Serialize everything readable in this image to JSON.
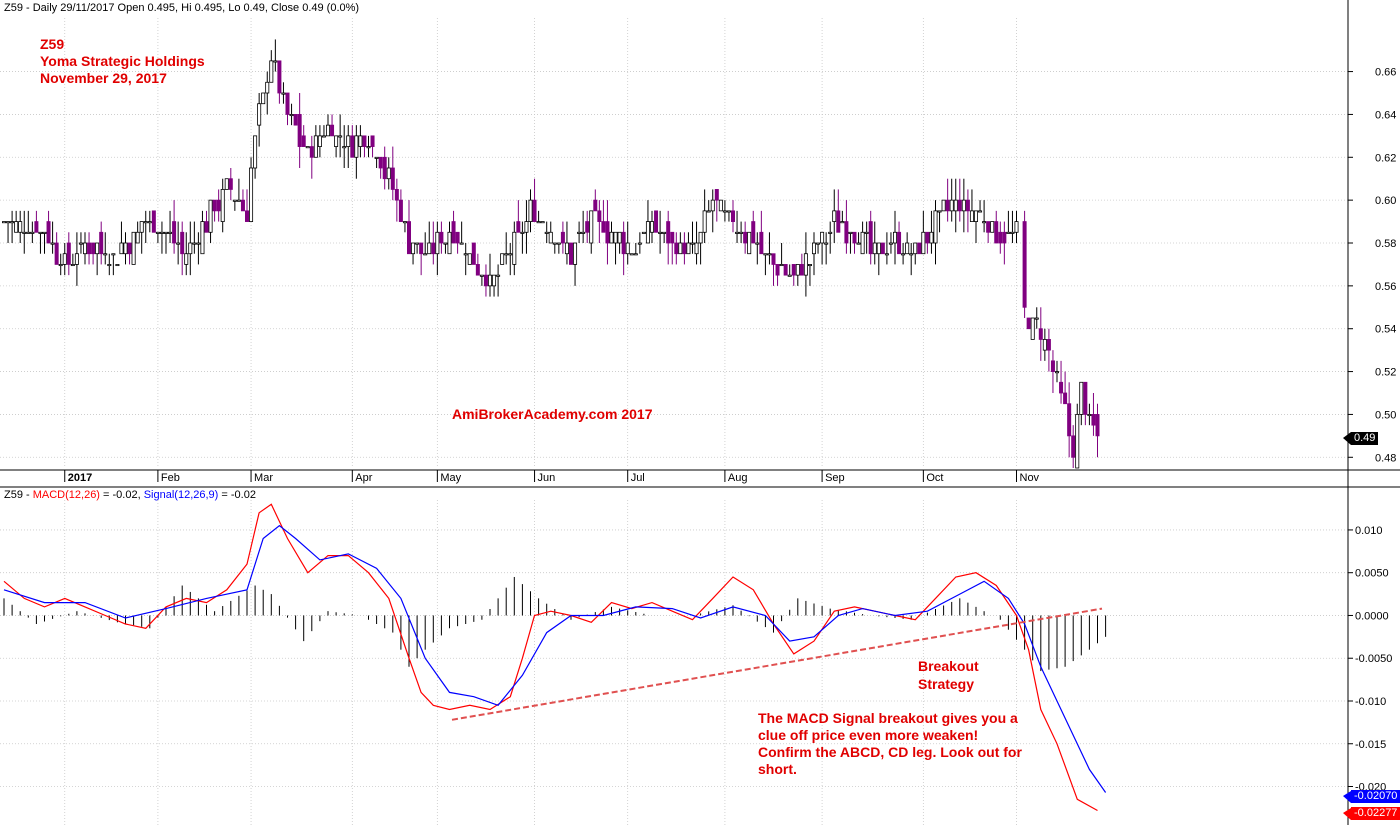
{
  "header": {
    "price_title": "Z59 - Daily 29/11/2017 Open 0.495, Hi 0.495, Lo 0.49, Close 0.49 (0.0%)",
    "macd_prefix": "Z59 - ",
    "macd_name": "MACD(12,26)",
    "macd_value": " = -0.02, ",
    "signal_name": "Signal(12,26,9)",
    "signal_value": " = -0.02"
  },
  "annotations": {
    "symbol": "Z59",
    "company": "Yoma Strategic Holdings",
    "date": "November 29, 2017",
    "watermark": "AmiBrokerAcademy.com  2017",
    "strategy_line1": "Breakout",
    "strategy_line2": "Strategy",
    "note": "The MACD Signal breakout gives you a clue off price even more weaken! Confirm the ABCD, CD leg. Look out for short."
  },
  "tags": {
    "last_price": "0.49",
    "signal_last": "-0.02070",
    "macd_last": "-0.02277"
  },
  "colors": {
    "up_candle": "#000000",
    "down_candle": "#800080",
    "macd_line": "#ff0000",
    "signal_line": "#0000ff",
    "histogram": "#000000",
    "trendline": "#e05050",
    "annotation_text": "#e00000"
  },
  "chart_data": [
    {
      "type": "candlestick",
      "title": "Z59 - Daily 29/11/2017",
      "x_ticks": [
        "2017",
        "Feb",
        "Mar",
        "Apr",
        "May",
        "Jun",
        "Jul",
        "Aug",
        "Sep",
        "Oct",
        "Nov"
      ],
      "y_ticks": [
        "0.66",
        "0.64",
        "0.62",
        "0.60",
        "0.58",
        "0.56",
        "0.54",
        "0.52",
        "0.50",
        "0.48"
      ],
      "ylim": [
        0.475,
        0.685
      ],
      "grid": true,
      "close_path": [
        [
          0,
          0.59
        ],
        [
          10,
          0.585
        ],
        [
          15,
          0.57
        ],
        [
          20,
          0.58
        ],
        [
          28,
          0.575
        ],
        [
          35,
          0.59
        ],
        [
          40,
          0.585
        ],
        [
          45,
          0.575
        ],
        [
          50,
          0.59
        ],
        [
          55,
          0.605
        ],
        [
          60,
          0.595
        ],
        [
          62,
          0.63
        ],
        [
          66,
          0.665
        ],
        [
          70,
          0.64
        ],
        [
          75,
          0.62
        ],
        [
          80,
          0.635
        ],
        [
          85,
          0.625
        ],
        [
          90,
          0.63
        ],
        [
          95,
          0.61
        ],
        [
          100,
          0.58
        ],
        [
          105,
          0.575
        ],
        [
          110,
          0.585
        ],
        [
          115,
          0.575
        ],
        [
          120,
          0.56
        ],
        [
          125,
          0.575
        ],
        [
          130,
          0.595
        ],
        [
          135,
          0.585
        ],
        [
          140,
          0.575
        ],
        [
          145,
          0.59
        ],
        [
          150,
          0.585
        ],
        [
          155,
          0.575
        ],
        [
          160,
          0.59
        ],
        [
          165,
          0.58
        ],
        [
          170,
          0.575
        ],
        [
          175,
          0.6
        ],
        [
          180,
          0.59
        ],
        [
          185,
          0.58
        ],
        [
          190,
          0.57
        ],
        [
          195,
          0.565
        ],
        [
          200,
          0.575
        ],
        [
          205,
          0.59
        ],
        [
          210,
          0.585
        ],
        [
          215,
          0.575
        ],
        [
          220,
          0.58
        ],
        [
          225,
          0.575
        ],
        [
          230,
          0.59
        ],
        [
          235,
          0.6
        ],
        [
          240,
          0.595
        ],
        [
          245,
          0.585
        ],
        [
          250,
          0.585
        ],
        [
          252,
          0.55
        ],
        [
          255,
          0.54
        ],
        [
          258,
          0.53
        ],
        [
          262,
          0.5
        ],
        [
          264,
          0.485
        ],
        [
          266,
          0.51
        ],
        [
          268,
          0.495
        ],
        [
          270,
          0.49
        ]
      ]
    },
    {
      "type": "line",
      "title": "Z59 - MACD(12,26) = -0.02, Signal(12,26,9) = -0.02",
      "y_ticks": [
        "0.010",
        "0.0050",
        "0.0000",
        "-0.0050",
        "-0.010",
        "-0.015",
        "-0.020"
      ],
      "ylim": [
        -0.0245,
        0.0135
      ],
      "grid": true,
      "series": [
        {
          "name": "MACD(12,26)",
          "points": [
            [
              0,
              0.004
            ],
            [
              5,
              0.002
            ],
            [
              10,
              0.001
            ],
            [
              15,
              0.002
            ],
            [
              20,
              0.001
            ],
            [
              25,
              0.0
            ],
            [
              30,
              -0.001
            ],
            [
              35,
              -0.0015
            ],
            [
              40,
              0.001
            ],
            [
              45,
              0.002
            ],
            [
              50,
              0.0015
            ],
            [
              55,
              0.003
            ],
            [
              60,
              0.006
            ],
            [
              63,
              0.012
            ],
            [
              66,
              0.013
            ],
            [
              70,
              0.009
            ],
            [
              75,
              0.005
            ],
            [
              80,
              0.007
            ],
            [
              85,
              0.007
            ],
            [
              90,
              0.005
            ],
            [
              95,
              0.002
            ],
            [
              100,
              -0.005
            ],
            [
              103,
              -0.009
            ],
            [
              106,
              -0.0105
            ],
            [
              110,
              -0.011
            ],
            [
              115,
              -0.0105
            ],
            [
              120,
              -0.011
            ],
            [
              125,
              -0.0095
            ],
            [
              128,
              -0.005
            ],
            [
              131,
              0.0
            ],
            [
              135,
              0.0005
            ],
            [
              140,
              0.0
            ],
            [
              145,
              -0.0008
            ],
            [
              150,
              0.0015
            ],
            [
              155,
              0.0008
            ],
            [
              160,
              0.0015
            ],
            [
              165,
              0.0005
            ],
            [
              170,
              -0.0005
            ],
            [
              175,
              0.002
            ],
            [
              180,
              0.0045
            ],
            [
              185,
              0.003
            ],
            [
              190,
              -0.001
            ],
            [
              195,
              -0.0045
            ],
            [
              200,
              -0.003
            ],
            [
              205,
              0.0005
            ],
            [
              210,
              0.001
            ],
            [
              215,
              0.0005
            ],
            [
              220,
              0.0
            ],
            [
              225,
              -0.0005
            ],
            [
              230,
              0.002
            ],
            [
              235,
              0.0045
            ],
            [
              240,
              0.005
            ],
            [
              245,
              0.0035
            ],
            [
              250,
              0.0
            ],
            [
              253,
              -0.004
            ],
            [
              256,
              -0.011
            ],
            [
              260,
              -0.015
            ],
            [
              265,
              -0.0215
            ],
            [
              270,
              -0.0228
            ]
          ]
        },
        {
          "name": "Signal(12,26,9)",
          "points": [
            [
              0,
              0.003
            ],
            [
              10,
              0.0015
            ],
            [
              20,
              0.0015
            ],
            [
              30,
              -0.0003
            ],
            [
              40,
              0.0008
            ],
            [
              50,
              0.002
            ],
            [
              60,
              0.003
            ],
            [
              64,
              0.009
            ],
            [
              68,
              0.0105
            ],
            [
              72,
              0.009
            ],
            [
              78,
              0.0065
            ],
            [
              85,
              0.0072
            ],
            [
              92,
              0.0055
            ],
            [
              98,
              0.002
            ],
            [
              104,
              -0.005
            ],
            [
              110,
              -0.009
            ],
            [
              116,
              -0.0095
            ],
            [
              122,
              -0.0105
            ],
            [
              128,
              -0.007
            ],
            [
              134,
              -0.002
            ],
            [
              140,
              0.0
            ],
            [
              148,
              0.0
            ],
            [
              156,
              0.001
            ],
            [
              165,
              0.0008
            ],
            [
              172,
              -0.0003
            ],
            [
              180,
              0.001
            ],
            [
              188,
              0.0
            ],
            [
              194,
              -0.003
            ],
            [
              200,
              -0.0025
            ],
            [
              206,
              0.0
            ],
            [
              212,
              0.0008
            ],
            [
              220,
              0.0
            ],
            [
              228,
              0.0005
            ],
            [
              236,
              0.0025
            ],
            [
              242,
              0.004
            ],
            [
              248,
              0.002
            ],
            [
              252,
              -0.001
            ],
            [
              256,
              -0.006
            ],
            [
              262,
              -0.012
            ],
            [
              268,
              -0.018
            ],
            [
              272,
              -0.0207
            ]
          ]
        },
        {
          "name": "Histogram",
          "spikes": [
            [
              0,
              0.002
            ],
            [
              8,
              -0.001
            ],
            [
              18,
              0.0005
            ],
            [
              28,
              -0.0008
            ],
            [
              36,
              -0.0015
            ],
            [
              44,
              0.0035
            ],
            [
              52,
              0.0005
            ],
            [
              62,
              0.0035
            ],
            [
              66,
              0.0025
            ],
            [
              74,
              -0.003
            ],
            [
              80,
              0.0005
            ],
            [
              88,
              0.0
            ],
            [
              96,
              -0.002
            ],
            [
              100,
              -0.006
            ],
            [
              104,
              -0.004
            ],
            [
              110,
              -0.0015
            ],
            [
              118,
              -0.0005
            ],
            [
              126,
              0.0045
            ],
            [
              132,
              0.002
            ],
            [
              140,
              -0.0005
            ],
            [
              150,
              0.001
            ],
            [
              160,
              0.0
            ],
            [
              170,
              0.0
            ],
            [
              180,
              0.0012
            ],
            [
              190,
              -0.002
            ],
            [
              196,
              0.002
            ],
            [
              204,
              0.0008
            ],
            [
              214,
              0.0
            ],
            [
              224,
              -0.0005
            ],
            [
              236,
              0.002
            ],
            [
              246,
              -0.0005
            ],
            [
              252,
              -0.004
            ],
            [
              256,
              -0.0065
            ],
            [
              262,
              -0.006
            ],
            [
              268,
              -0.004
            ],
            [
              272,
              -0.0025
            ]
          ]
        }
      ]
    }
  ]
}
